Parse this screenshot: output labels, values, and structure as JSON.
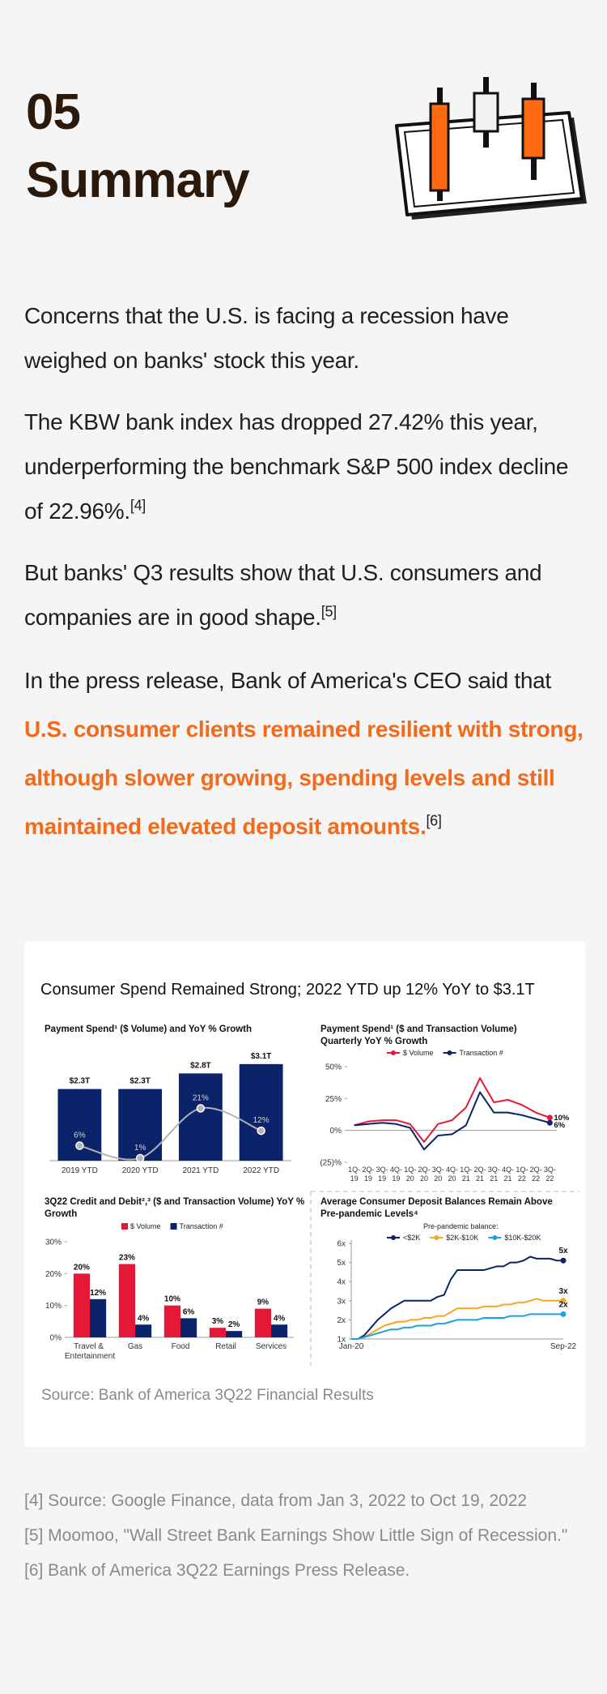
{
  "header": {
    "number": "05",
    "title": "Summary"
  },
  "paragraphs": [
    {
      "text": "Concerns that the U.S. is facing a recession have weighed on banks' stock this year."
    },
    {
      "text": "The KBW bank index has dropped 27.42% this year, underperforming the benchmark S&P 500 index decline of 22.96%.",
      "ref": "[4]"
    },
    {
      "text": "But banks' Q3 results show that U.S. consumers and companies are in good shape.",
      "ref": "[5]"
    },
    {
      "text": "In the press release, Bank of America's CEO said that ",
      "highlight": "U.S. consumer clients remained resilient with strong, although slower growing, spending levels and still maintained elevated deposit amounts.",
      "ref": "[6]"
    }
  ],
  "figure": {
    "title": "Consumer Spend Remained Strong; 2022 YTD up 12% YoY to $3.1T",
    "source": "Source: Bank of America 3Q22 Financial Results"
  },
  "chart_data": [
    {
      "type": "bar",
      "title": "Payment Spend¹ ($ Volume) and YoY % Growth",
      "categories": [
        "2019 YTD",
        "2020 YTD",
        "2021 YTD",
        "2022 YTD"
      ],
      "values": [
        2.3,
        2.3,
        2.8,
        3.1
      ],
      "value_labels": [
        "$2.3T",
        "$2.3T",
        "$2.8T",
        "$3.1T"
      ],
      "color": "#0b2469",
      "ylim": [
        0,
        3.2
      ],
      "line": {
        "values": [
          6,
          1,
          21,
          12
        ],
        "value_labels": [
          "6%",
          "1%",
          "21%",
          "12%"
        ],
        "color": "#b3b3b3",
        "axis": "y2"
      },
      "y2lim": [
        0,
        40
      ]
    },
    {
      "type": "line",
      "title": "Payment Spend¹ ($ and Transaction Volume) Quarterly YoY % Growth",
      "categories": [
        "1Q-19",
        "2Q-19",
        "3Q-19",
        "4Q-19",
        "1Q-20",
        "2Q-20",
        "3Q-20",
        "4Q-20",
        "1Q-21",
        "2Q-21",
        "3Q-21",
        "4Q-21",
        "1Q-22",
        "2Q-22",
        "3Q-22"
      ],
      "series": [
        {
          "name": "$ Volume",
          "color": "#e31937",
          "values": [
            4,
            7,
            8,
            8,
            5,
            -9,
            5,
            8,
            18,
            41,
            22,
            24,
            20,
            14,
            10
          ],
          "end_label": "10%"
        },
        {
          "name": "Transaction #",
          "color": "#0b2469",
          "values": [
            4,
            5,
            6,
            5,
            2,
            -15,
            -4,
            -3,
            4,
            30,
            14,
            14,
            12,
            9,
            6
          ],
          "end_label": "6%"
        }
      ],
      "ylim": [
        -25,
        50
      ],
      "yticks": [
        {
          "value": 50,
          "label": "50%"
        },
        {
          "value": 25,
          "label": "25%"
        },
        {
          "value": 0,
          "label": "0%"
        },
        {
          "value": -25,
          "label": "(25)%"
        }
      ]
    },
    {
      "type": "grouped_bar",
      "title": "3Q22 Credit and Debit²,³ ($ and Transaction Volume) YoY % Growth",
      "categories": [
        "Travel & Entertainment",
        "Gas",
        "Food",
        "Retail",
        "Services"
      ],
      "series": [
        {
          "name": "$ Volume",
          "color": "#e31937",
          "values": [
            20,
            23,
            10,
            3,
            9
          ],
          "value_labels": [
            "20%",
            "23%",
            "10%",
            "3%",
            "9%"
          ]
        },
        {
          "name": "Transaction #",
          "color": "#0b2469",
          "values": [
            12,
            4,
            6,
            2,
            4
          ],
          "value_labels": [
            "12%",
            "4%",
            "6%",
            "2%",
            "4%"
          ]
        }
      ],
      "ylim": [
        0,
        30
      ],
      "yticks": [
        {
          "value": 0,
          "label": "0%"
        },
        {
          "value": 10,
          "label": "10%"
        },
        {
          "value": 20,
          "label": "20%"
        },
        {
          "value": 30,
          "label": "30%"
        }
      ]
    },
    {
      "type": "line",
      "title": "Average Consumer Deposit Balances Remain Above Pre-pandemic Levels⁴",
      "legend_title": "Pre-pandemic balance:",
      "categories": [
        "Jan-20",
        null,
        null,
        null,
        null,
        null,
        null,
        null,
        null,
        null,
        null,
        null,
        null,
        null,
        null,
        null,
        null,
        null,
        null,
        null,
        null,
        null,
        null,
        null,
        null,
        null,
        null,
        null,
        null,
        null,
        null,
        null,
        "Sep-22"
      ],
      "series": [
        {
          "name": "<$2K",
          "color": "#0b2469",
          "values": [
            1.0,
            1.0,
            1.2,
            1.6,
            2.0,
            2.3,
            2.6,
            2.8,
            3.0,
            3.0,
            3.0,
            3.0,
            3.0,
            3.2,
            3.3,
            4.1,
            4.6,
            4.6,
            4.6,
            4.6,
            4.6,
            4.7,
            4.8,
            4.8,
            5.0,
            5.0,
            5.1,
            5.3,
            5.2,
            5.2,
            5.2,
            5.1,
            5.1
          ],
          "end_label": "5x"
        },
        {
          "name": "$2K-$10K",
          "color": "#f5a623",
          "values": [
            1.0,
            1.0,
            1.1,
            1.3,
            1.5,
            1.7,
            1.8,
            1.9,
            1.9,
            2.0,
            2.0,
            2.1,
            2.1,
            2.2,
            2.2,
            2.4,
            2.6,
            2.6,
            2.6,
            2.6,
            2.7,
            2.7,
            2.7,
            2.8,
            2.8,
            2.9,
            2.9,
            3.0,
            3.1,
            3.0,
            3.0,
            3.0,
            3.0
          ],
          "end_label": "3x"
        },
        {
          "name": "$10K-$20K",
          "color": "#1da1e0",
          "values": [
            1.0,
            1.0,
            1.1,
            1.2,
            1.3,
            1.4,
            1.5,
            1.5,
            1.6,
            1.6,
            1.7,
            1.7,
            1.7,
            1.8,
            1.8,
            1.9,
            2.0,
            2.0,
            2.0,
            2.0,
            2.1,
            2.1,
            2.1,
            2.1,
            2.2,
            2.2,
            2.2,
            2.3,
            2.3,
            2.3,
            2.3,
            2.3,
            2.3
          ],
          "end_label": "2x"
        }
      ],
      "ylim": [
        1,
        6
      ],
      "yticks": [
        {
          "value": 1,
          "label": "1x"
        },
        {
          "value": 2,
          "label": "2x"
        },
        {
          "value": 3,
          "label": "3x"
        },
        {
          "value": 4,
          "label": "4x"
        },
        {
          "value": 5,
          "label": "5x"
        },
        {
          "value": 6,
          "label": "6x"
        }
      ]
    }
  ],
  "footnotes": [
    "[4] Source: Google Finance, data from Jan 3, 2022 to Oct 19, 2022",
    "[5] Moomoo, \"Wall Street Bank Earnings Show Little Sign of Recession.\"",
    "[6] Bank of America 3Q22 Earnings Press Release."
  ]
}
